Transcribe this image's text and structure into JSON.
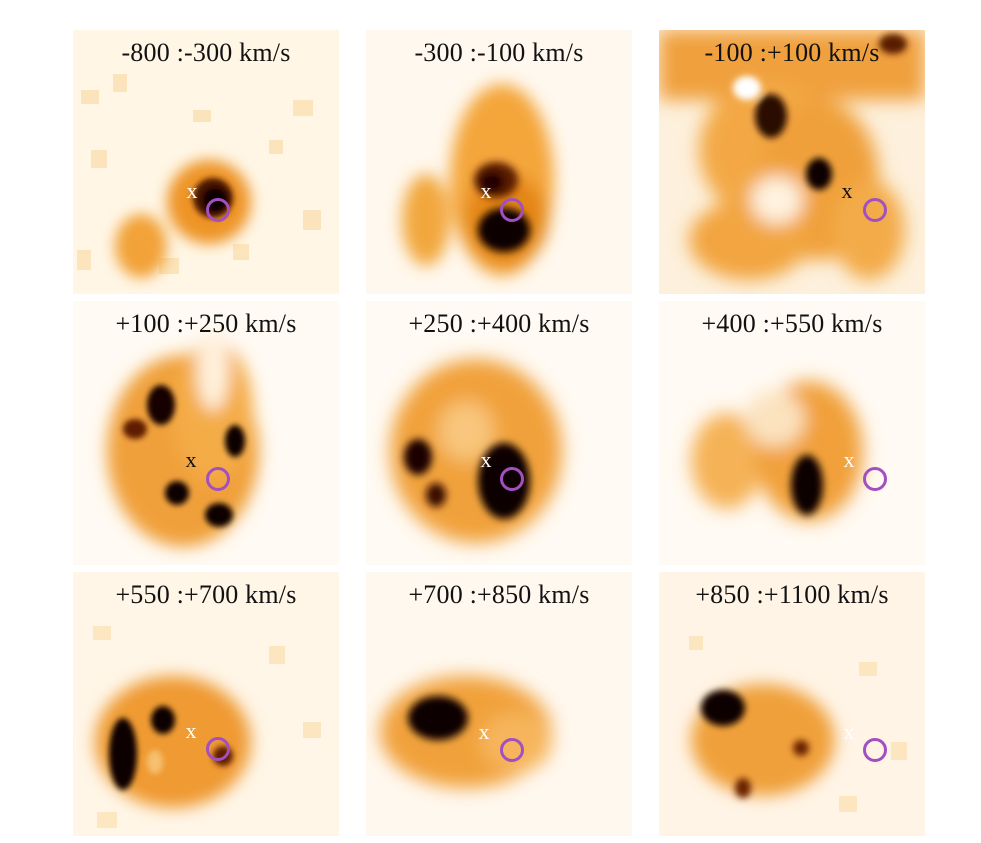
{
  "figure": {
    "colors": {
      "ring": "#a24fc0",
      "x_on_dark": "#ffffff",
      "x_on_light": "#111111"
    },
    "panels": [
      {
        "label": "-800 :-300 km/s",
        "x_marker": "x",
        "ring": "circle"
      },
      {
        "label": "-300 :-100 km/s",
        "x_marker": "x",
        "ring": "circle"
      },
      {
        "label": "-100 :+100 km/s",
        "x_marker": "x",
        "ring": "circle"
      },
      {
        "label": "+100 :+250 km/s",
        "x_marker": "x",
        "ring": "circle"
      },
      {
        "label": "+250 :+400 km/s",
        "x_marker": "x",
        "ring": "circle"
      },
      {
        "label": "+400 :+550 km/s",
        "x_marker": "x",
        "ring": "circle"
      },
      {
        "label": "+550 :+700 km/s",
        "x_marker": "x",
        "ring": "circle"
      },
      {
        "label": "+700 :+850 km/s",
        "x_marker": "x",
        "ring": "circle"
      },
      {
        "label": "+850 :+1100 km/s",
        "x_marker": "x",
        "ring": "circle"
      }
    ]
  }
}
